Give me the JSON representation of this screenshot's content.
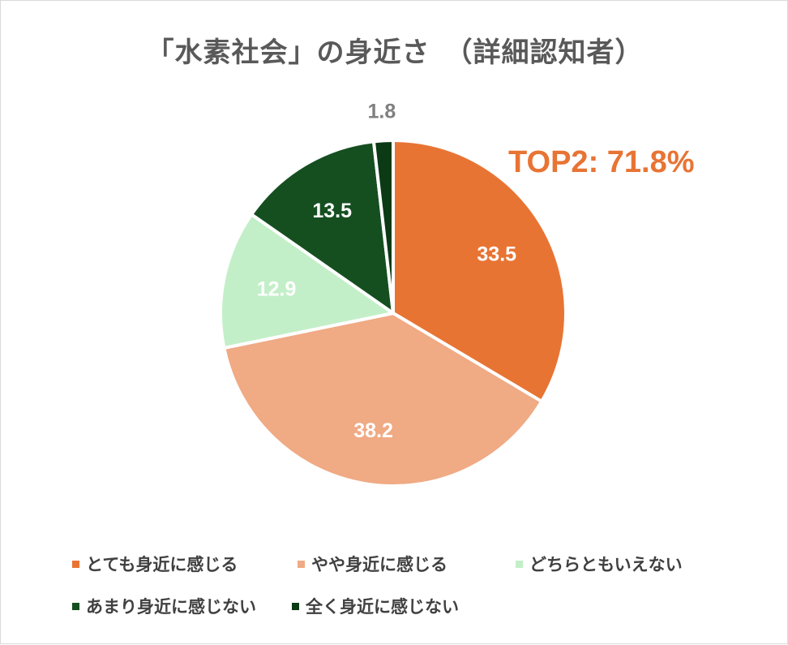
{
  "chart_data": {
    "type": "pie",
    "title": "「水素社会」の身近さ　（詳細認知者）",
    "callout": "TOP2: 71.8%",
    "legend_position": "bottom",
    "slices": [
      {
        "label": "とても身近に感じる",
        "value": 33.5,
        "value_label": "33.5",
        "color": "#e87434"
      },
      {
        "label": "やや身近に感じる",
        "value": 38.2,
        "value_label": "38.2",
        "color": "#f0aa84"
      },
      {
        "label": "どちらともいえない",
        "value": 12.9,
        "value_label": "12.9",
        "color": "#c3efc8"
      },
      {
        "label": "あまり身近に感じない",
        "value": 13.5,
        "value_label": "13.5",
        "color": "#154f20"
      },
      {
        "label": "全く身近に感じない",
        "value": 1.8,
        "value_label": "1.8",
        "color": "#0b3a15"
      }
    ],
    "label_colors": [
      "#ffffff",
      "#ffffff",
      "#ffffff",
      "#ffffff",
      "#808080"
    ]
  }
}
